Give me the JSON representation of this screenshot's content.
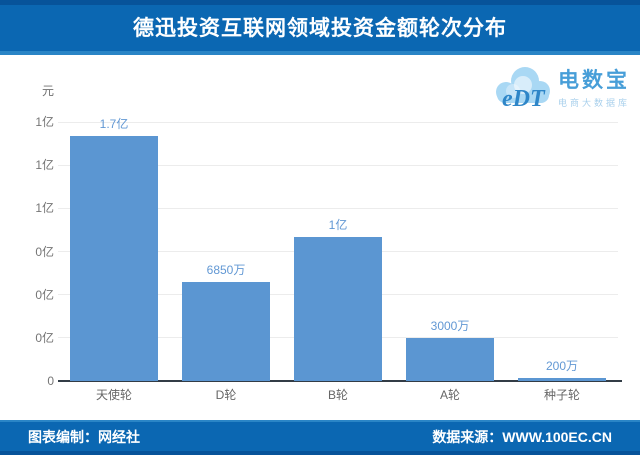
{
  "header": {
    "title": "德迅投资互联网领域投资金额轮次分布"
  },
  "logo": {
    "monogram": "eDT",
    "brand": "电数宝",
    "tagline": "电商大数据库"
  },
  "footer": {
    "left": "图表编制：网经社",
    "right": "数据来源：WWW.100EC.CN"
  },
  "chart_data": {
    "type": "bar",
    "title": "德迅投资互联网领域投资金额轮次分布",
    "unit_label": "元",
    "categories": [
      "天使轮",
      "D轮",
      "B轮",
      "A轮",
      "种子轮"
    ],
    "values_yi": [
      1.7,
      0.685,
      1.0,
      0.3,
      0.02
    ],
    "value_labels": [
      "1.7亿",
      "6850万",
      "1亿",
      "3000万",
      "200万"
    ],
    "y_tick_labels_top_to_bottom": [
      "1亿",
      "1亿",
      "1亿",
      "0亿",
      "0亿",
      "0亿",
      "0"
    ],
    "ylim_yi": [
      0,
      1.8
    ],
    "grid": true,
    "legend": "none",
    "bar_color": "#5b96d2",
    "value_label_color": "#6298d4",
    "axis_text_color": "#757575",
    "gridline_color": "#ececec",
    "axis_line_color": "#323c46"
  },
  "colors": {
    "band_blue": "#0b67b2",
    "band_dark_blue": "#07539a",
    "band_light_blue": "#2a85c6",
    "logo_cloud": "#a9d8f4",
    "logo_text": "#2e86c8"
  }
}
